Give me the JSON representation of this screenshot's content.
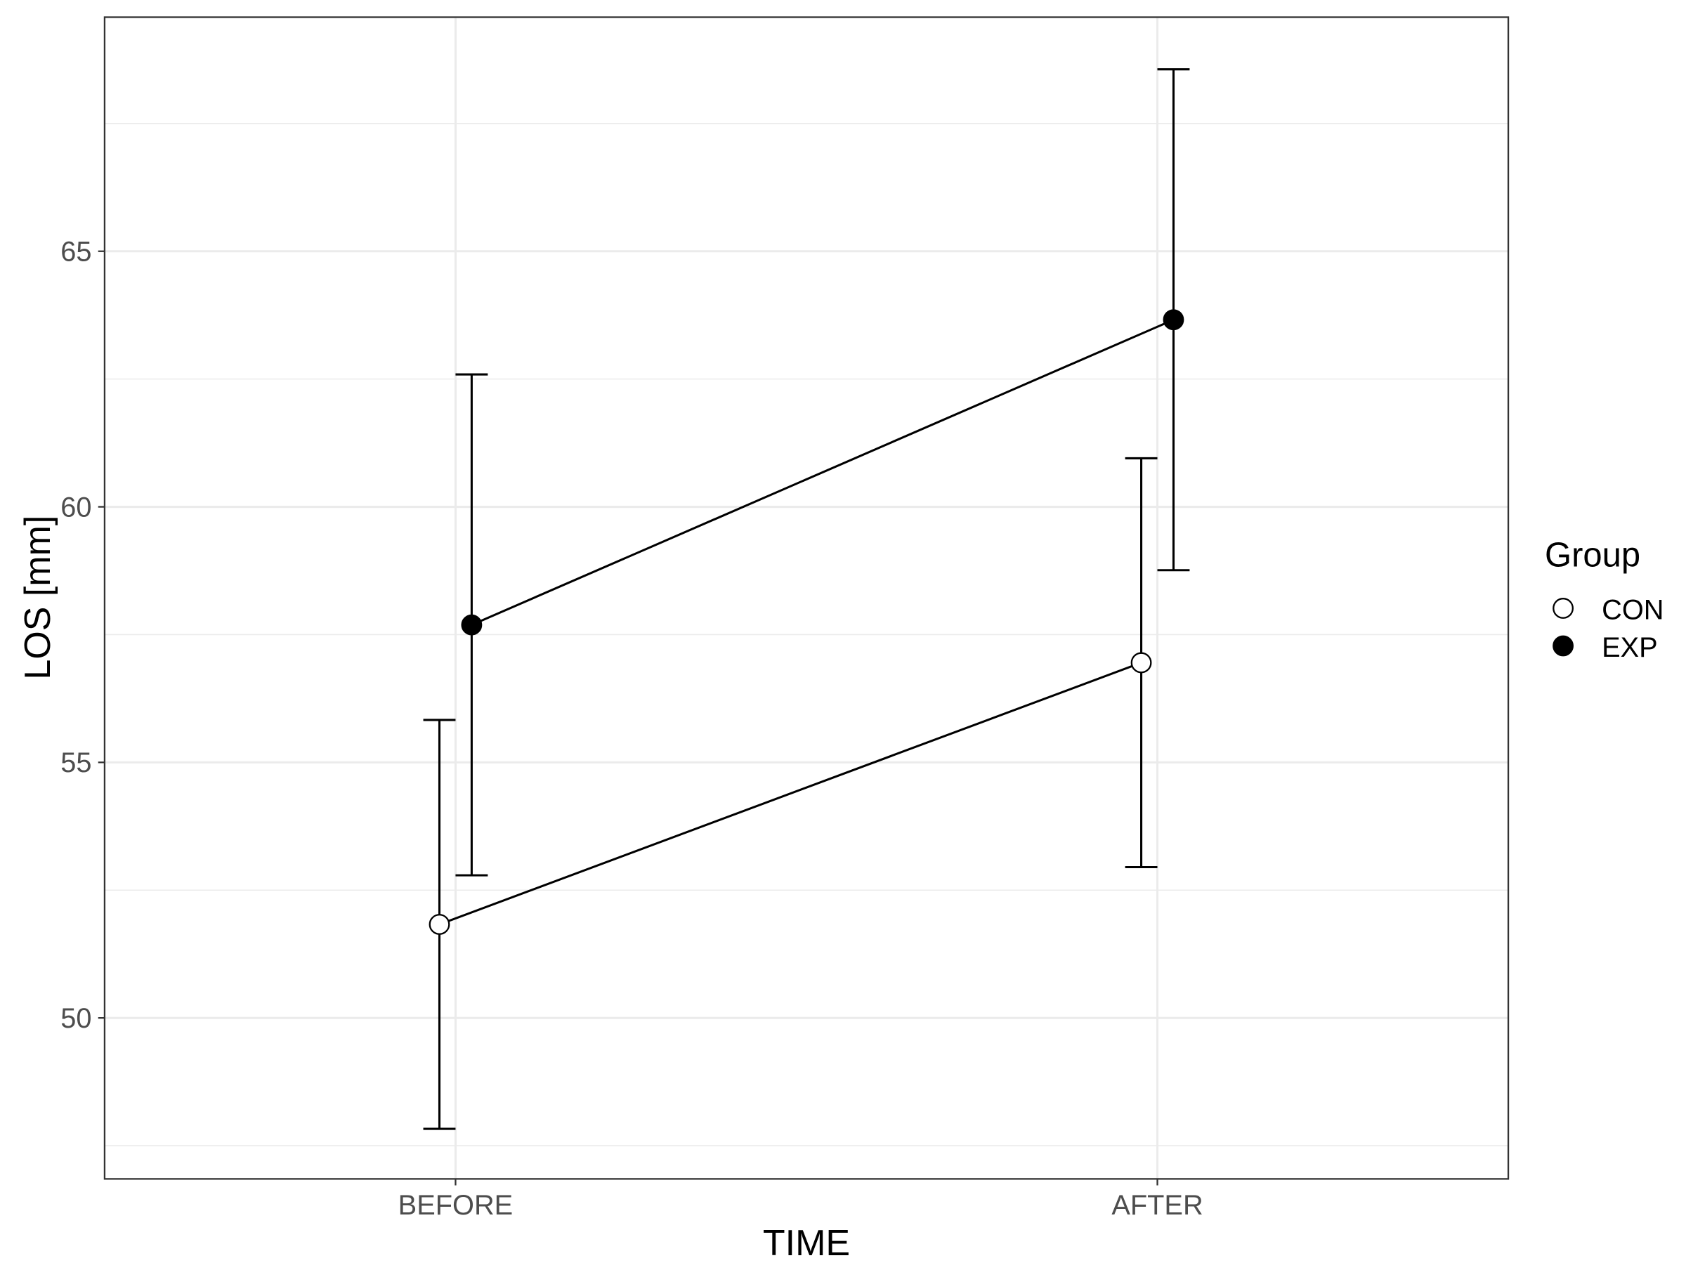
{
  "chart_data": {
    "type": "line",
    "x_label": "TIME",
    "y_label": "LOS [mm]",
    "categories": [
      "BEFORE",
      "AFTER"
    ],
    "series": [
      {
        "name": "CON",
        "color": "#ffffff",
        "values": [
          51.83,
          56.95
        ],
        "errors": [
          4.0,
          4.0
        ]
      },
      {
        "name": "EXP",
        "color": "#000000",
        "values": [
          57.69,
          63.66
        ],
        "errors": [
          4.9,
          4.9
        ]
      }
    ],
    "ylim": [
      46.85,
      69.58
    ],
    "yticks": [
      50,
      55,
      60,
      65
    ],
    "grid": true,
    "minor_grid": true,
    "legend_title": "Group",
    "legend": "right"
  }
}
